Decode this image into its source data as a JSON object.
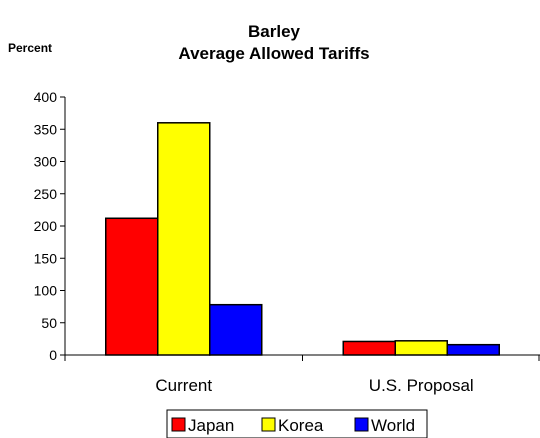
{
  "chart_data": {
    "type": "bar",
    "title_lines": [
      "Barley",
      "Average Allowed Tariffs"
    ],
    "ylabel": "Percent",
    "xlabel": "",
    "categories": [
      "Current",
      "U.S. Proposal"
    ],
    "series": [
      {
        "name": "Japan",
        "color": "#ff0000",
        "values": [
          212,
          21
        ]
      },
      {
        "name": "Korea",
        "color": "#ffff00",
        "values": [
          360,
          22
        ]
      },
      {
        "name": "World",
        "color": "#0000ff",
        "values": [
          78,
          16
        ]
      }
    ],
    "ylim": [
      0,
      400
    ],
    "yticks": [
      0,
      50,
      100,
      150,
      200,
      250,
      300,
      350,
      400
    ],
    "grid": false,
    "legend_position": "bottom"
  }
}
